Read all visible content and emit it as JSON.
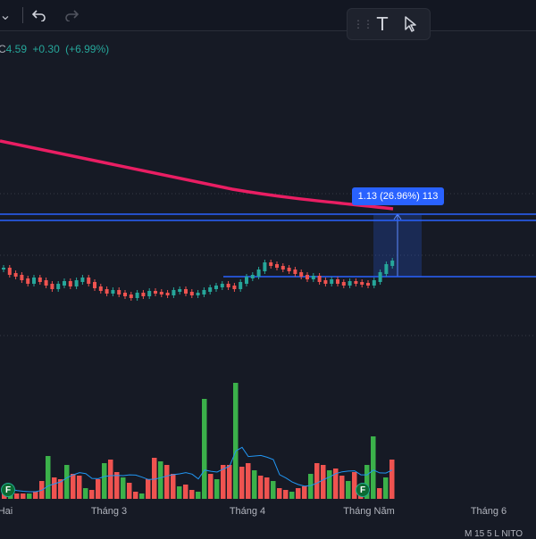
{
  "toolbar": {
    "chevron_icon": "chevron-down-icon",
    "undo_icon": "undo-icon",
    "redo_icon": "redo-icon"
  },
  "drawing_toolbar": {
    "grip_icon": "grip-dots-icon",
    "text_tool_icon": "text-tool-icon",
    "cursor_tool_icon": "cursor-arrow-icon",
    "text_glyph": "T"
  },
  "legend": {
    "close_prefix": "C",
    "close": "4.59",
    "change": "+0.30",
    "change_pct": "(+6.99%)"
  },
  "measure": {
    "label": "1.13 (26.96%) 113"
  },
  "x_axis": {
    "labels": [
      "Hai",
      "Tháng 3",
      "Tháng 4",
      "Tháng Năm",
      "Tháng 6"
    ]
  },
  "events": {
    "earnings_letter": "F"
  },
  "bottom_text": "M 15 5 L NITO",
  "colors": {
    "background": "#161a25",
    "up": "#26a69a",
    "up_vol": "#3bb14a",
    "down": "#ef5350",
    "ma_line": "#e91e63",
    "horizontal_line": "#2962ff",
    "volume_ma": "#2196f3"
  },
  "price_series_hint": {
    "candle_mids": [
      300,
      306,
      308,
      312,
      316,
      311,
      314,
      318,
      322,
      318,
      315,
      319,
      314,
      311,
      316,
      321,
      324,
      327,
      325,
      328,
      330,
      332,
      328,
      330,
      326,
      327,
      328,
      329,
      325,
      324,
      327,
      329,
      328,
      325,
      322,
      320,
      318,
      320,
      322,
      316,
      310,
      308,
      302,
      294,
      296,
      298,
      300,
      302,
      305,
      308,
      311,
      309,
      314,
      316,
      313,
      316,
      318,
      315,
      316,
      317,
      318,
      314,
      305,
      296,
      292
    ],
    "volume_heights": [
      14,
      8,
      6,
      6,
      6,
      8,
      20,
      48,
      24,
      22,
      38,
      28,
      26,
      12,
      10,
      22,
      40,
      44,
      30,
      24,
      18,
      8,
      6,
      22,
      46,
      42,
      38,
      28,
      14,
      16,
      10,
      8,
      112,
      28,
      22,
      38,
      38,
      130,
      36,
      40,
      32,
      26,
      24,
      20,
      12,
      10,
      8,
      12,
      14,
      28,
      40,
      38,
      32,
      34,
      26,
      20,
      30,
      8,
      38,
      70,
      12,
      24,
      44
    ]
  }
}
